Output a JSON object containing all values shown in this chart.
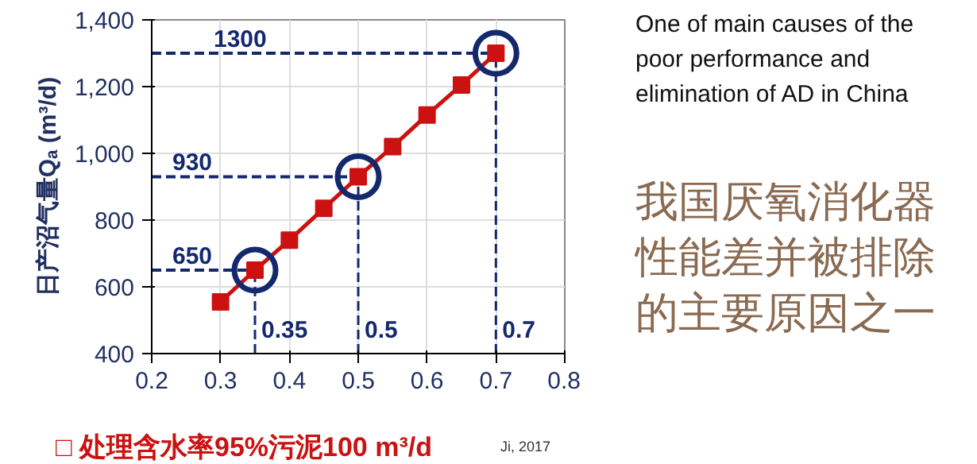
{
  "chart_data": {
    "type": "line",
    "ylabel": "日产沼气量Qₐ (m³/d)",
    "x": [
      0.3,
      0.35,
      0.4,
      0.45,
      0.5,
      0.55,
      0.6,
      0.65,
      0.7
    ],
    "series": [
      {
        "color": "#cc1111",
        "marker": "square",
        "line_style": "solid",
        "values": [
          555,
          650,
          740,
          835,
          930,
          1020,
          1115,
          1205,
          1300
        ]
      },
      {
        "type": "scatter",
        "color": "#14286e",
        "marker": "circle",
        "x": [
          0.35,
          0.5,
          0.7
        ],
        "values": [
          650,
          930,
          1300
        ]
      }
    ],
    "xlim": [
      0.2,
      0.8
    ],
    "xticks": [
      0.2,
      0.3,
      0.4,
      0.5,
      0.6,
      0.7,
      0.8
    ],
    "ylim": [
      400,
      1400
    ],
    "yticks": [
      {
        "value": 400,
        "label": "400"
      },
      {
        "value": 600,
        "label": "600"
      },
      {
        "value": 800,
        "label": "800"
      },
      {
        "value": 1000,
        "label": "1,000"
      },
      {
        "value": 1200,
        "label": "1,200"
      },
      {
        "value": 1400,
        "label": "1,400"
      }
    ],
    "grid": true,
    "ref_lines": [
      {
        "axis": "y",
        "value": 650,
        "label": "650",
        "color": "#14286e",
        "line_style": "dashed"
      },
      {
        "axis": "y",
        "value": 930,
        "label": "930",
        "color": "#14286e",
        "line_style": "dashed"
      },
      {
        "axis": "y",
        "value": 1300,
        "label": "1300",
        "color": "#14286e",
        "line_style": "dashed"
      },
      {
        "axis": "x",
        "value": 0.35,
        "label": "0.35",
        "color": "#14286e",
        "line_style": "dashed"
      },
      {
        "axis": "x",
        "value": 0.5,
        "label": "0.5",
        "color": "#14286e",
        "line_style": "dashed"
      },
      {
        "axis": "x",
        "value": 0.7,
        "label": "0.7",
        "color": "#14286e",
        "line_style": "dashed"
      }
    ],
    "annotations": [
      "One of main causes of the poor performance and elimination of AD in China",
      "我国厌氧消化器性能差并被排除的主要原因之一",
      "□ 处理含水率95%污泥100 m³/d",
      "Ji, 2017"
    ]
  }
}
